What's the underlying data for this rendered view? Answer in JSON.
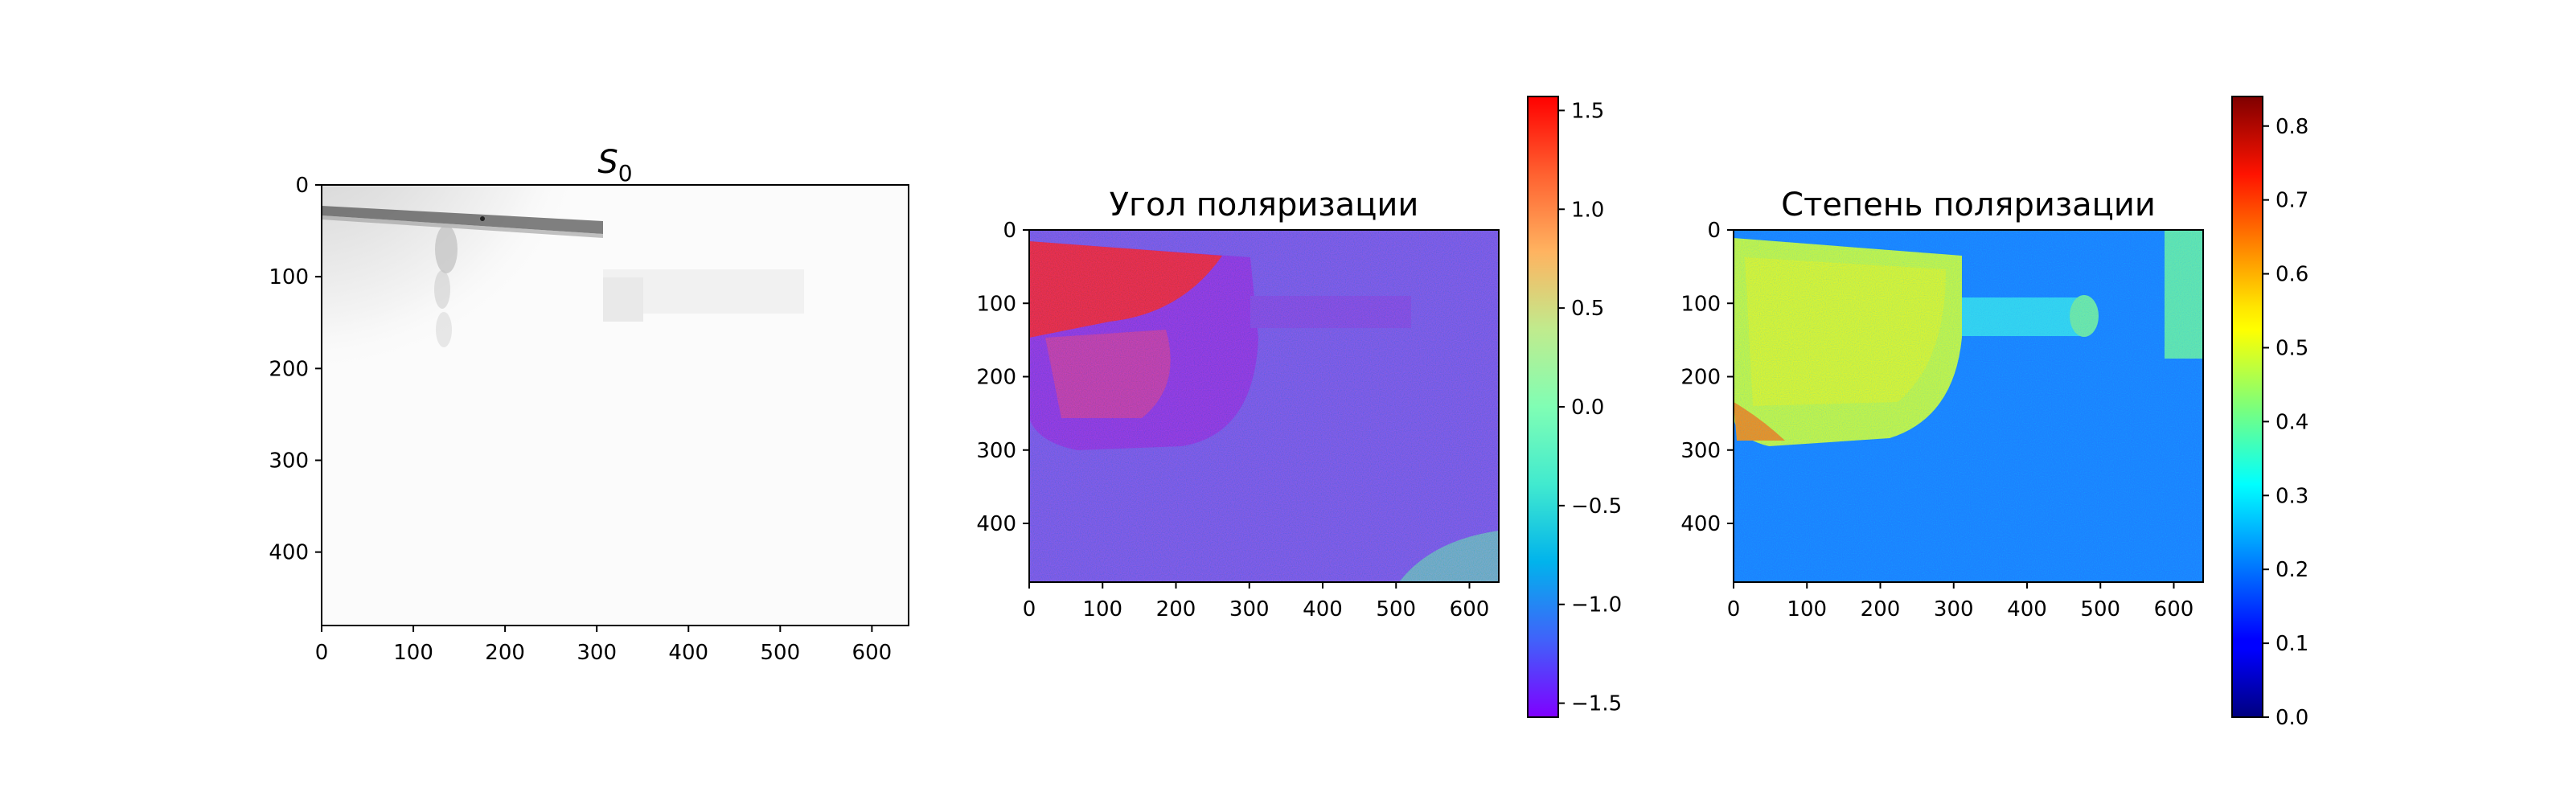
{
  "figure": {
    "panels": [
      {
        "id": "s0",
        "title_main": "S",
        "title_sub": "0"
      },
      {
        "id": "angle",
        "title": "Угол поляризации"
      },
      {
        "id": "degree",
        "title": "Степень поляризации"
      }
    ]
  },
  "chart_data": [
    {
      "type": "heatmap",
      "title": "S₀",
      "colormap": "gray_r",
      "xlim": [
        0,
        640
      ],
      "ylim": [
        480,
        0
      ],
      "xticks": [
        0,
        100,
        200,
        300,
        400,
        500,
        600
      ],
      "yticks": [
        0,
        100,
        200,
        300,
        400
      ],
      "grid": false
    },
    {
      "type": "heatmap",
      "title": "Угол поляризации",
      "colormap": "rainbow",
      "xlim": [
        0,
        640
      ],
      "ylim": [
        480,
        0
      ],
      "xticks": [
        0,
        100,
        200,
        300,
        400,
        500,
        600
      ],
      "yticks": [
        0,
        100,
        200,
        300,
        400
      ],
      "colorbar": {
        "min": -1.5708,
        "max": 1.5708,
        "ticks": [
          -1.5,
          -1.0,
          -0.5,
          0.0,
          0.5,
          1.0,
          1.5
        ]
      },
      "grid": false
    },
    {
      "type": "heatmap",
      "title": "Степень поляризации",
      "colormap": "jet",
      "xlim": [
        0,
        640
      ],
      "ylim": [
        480,
        0
      ],
      "xticks": [
        0,
        100,
        200,
        300,
        400,
        500,
        600
      ],
      "yticks": [
        0,
        100,
        200,
        300,
        400
      ],
      "colorbar": {
        "min": 0.0,
        "max": 0.84,
        "ticks": [
          0.0,
          0.1,
          0.2,
          0.3,
          0.4,
          0.5,
          0.6,
          0.7,
          0.8
        ]
      },
      "grid": false
    }
  ],
  "colors": {
    "axis": "#000000",
    "background": "#ffffff"
  }
}
